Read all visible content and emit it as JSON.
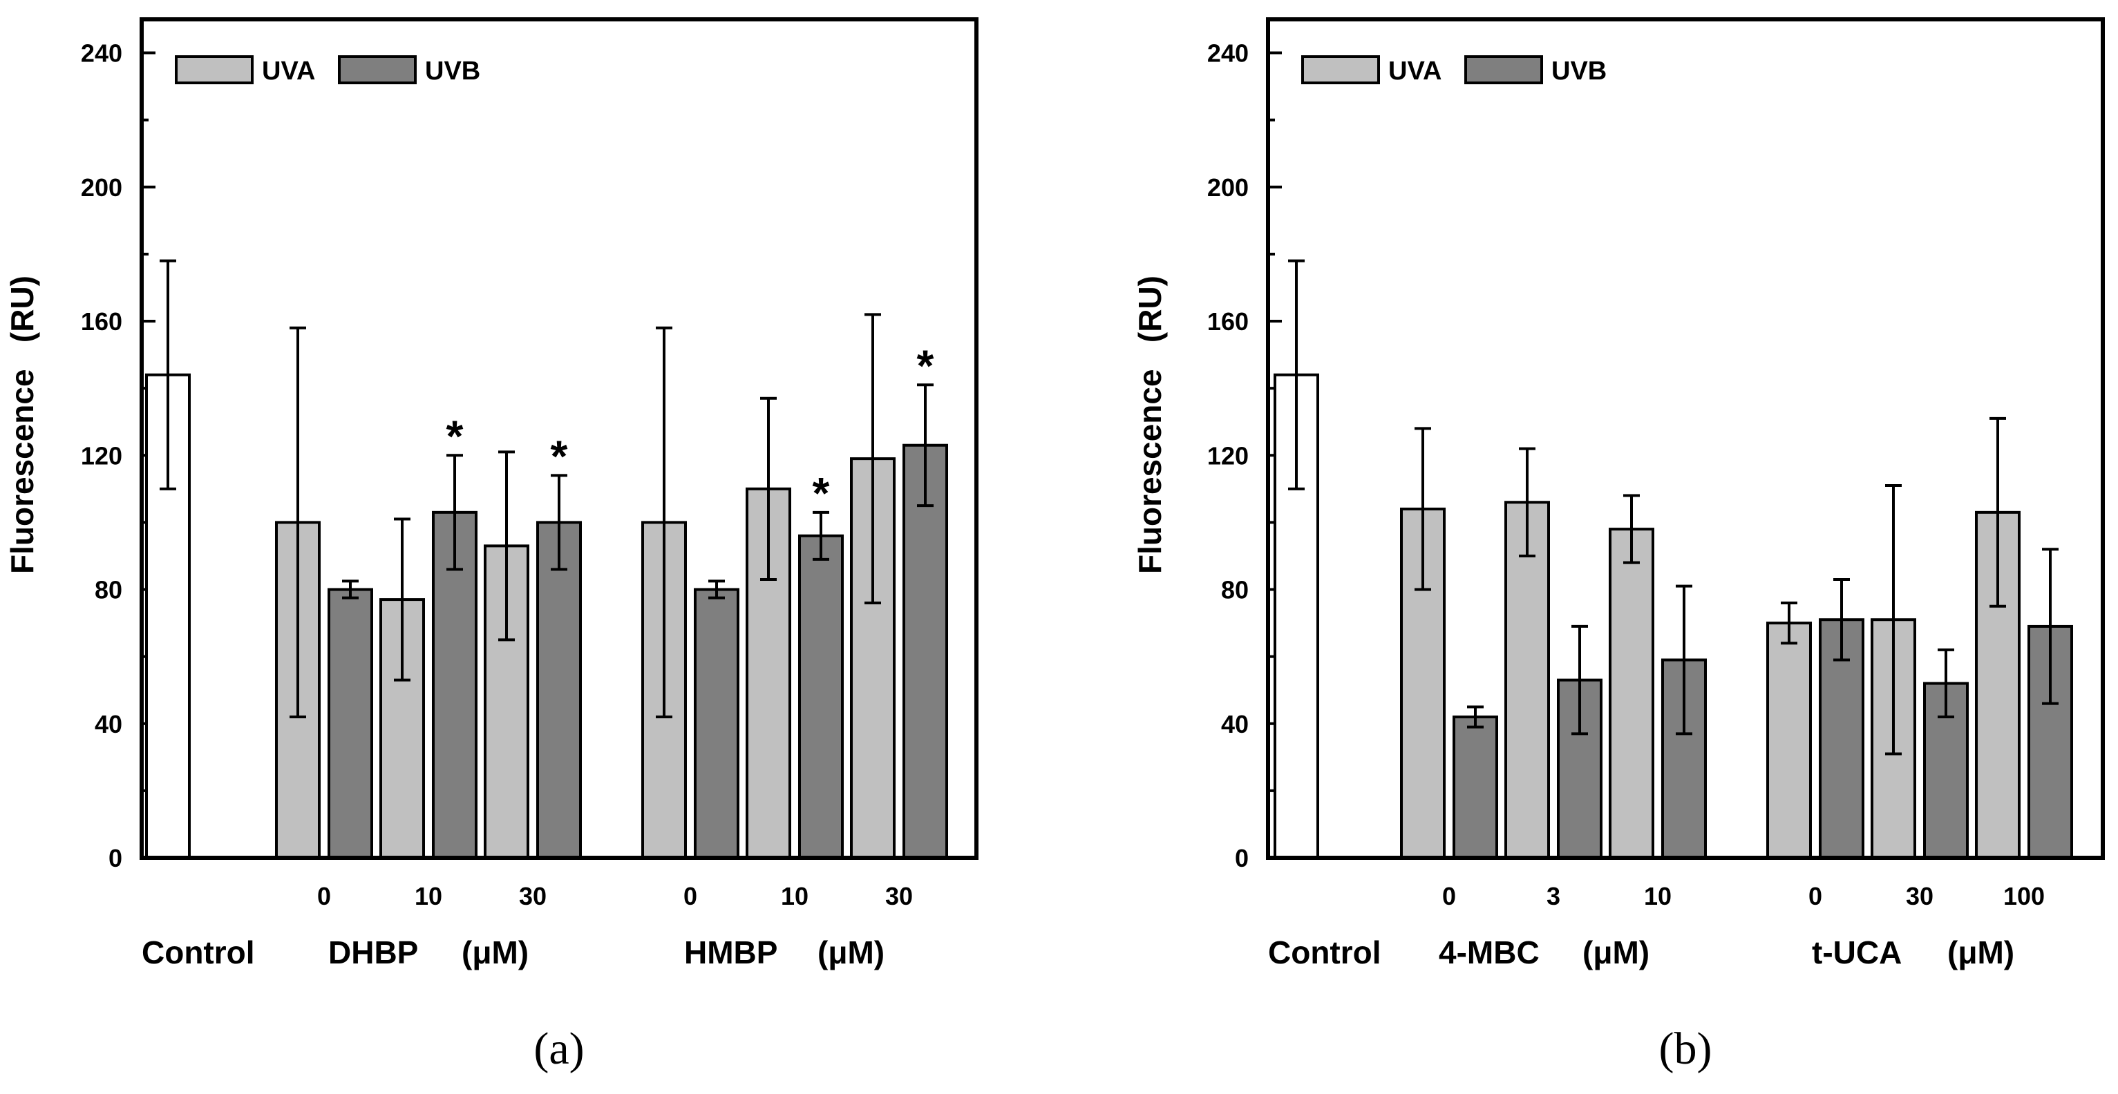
{
  "colors": {
    "control": "#ffffff",
    "uva": "#c0c0c0",
    "uvb": "#7f7f7f",
    "ink": "#000000"
  },
  "chart_data": [
    {
      "type": "bar",
      "panel_label": "(a)",
      "ylabel": "Fluorescence   (RU)",
      "ylim": [
        0,
        250
      ],
      "yticks": [
        0,
        40,
        80,
        120,
        160,
        200,
        240
      ],
      "legend": {
        "position": "top-left",
        "entries": [
          "UVA",
          "UVB"
        ]
      },
      "control": {
        "label": "Control",
        "value": 144,
        "err": 34
      },
      "groups": [
        {
          "name": "DHBP",
          "unit": "(μM)",
          "concentrations": [
            "0",
            "10",
            "30"
          ],
          "series": [
            {
              "name": "UVA",
              "values": [
                100,
                77,
                93
              ],
              "errors": [
                58,
                24,
                28
              ],
              "stars": [
                false,
                false,
                false
              ]
            },
            {
              "name": "UVB",
              "values": [
                80,
                103,
                100
              ],
              "errors": [
                2.5,
                17,
                14
              ],
              "stars": [
                false,
                true,
                true
              ]
            }
          ]
        },
        {
          "name": "HMBP",
          "unit": "(μM)",
          "concentrations": [
            "0",
            "10",
            "30"
          ],
          "series": [
            {
              "name": "UVA",
              "values": [
                100,
                110,
                119
              ],
              "errors": [
                58,
                27,
                43
              ],
              "stars": [
                false,
                false,
                false
              ]
            },
            {
              "name": "UVB",
              "values": [
                80,
                96,
                123
              ],
              "errors": [
                2.5,
                7,
                18
              ],
              "stars": [
                false,
                true,
                true
              ]
            }
          ]
        }
      ],
      "star_symbol": "*"
    },
    {
      "type": "bar",
      "panel_label": "(b)",
      "ylabel": "Fluorescence   (RU)",
      "ylim": [
        0,
        250
      ],
      "yticks": [
        0,
        40,
        80,
        120,
        160,
        200,
        240
      ],
      "legend": {
        "position": "top-left",
        "entries": [
          "UVA",
          "UVB"
        ]
      },
      "control": {
        "label": "Control",
        "value": 144,
        "err": 34
      },
      "groups": [
        {
          "name": "4-MBC",
          "unit": "(μM)",
          "concentrations": [
            "0",
            "3",
            "10"
          ],
          "series": [
            {
              "name": "UVA",
              "values": [
                104,
                106,
                98
              ],
              "errors": [
                24,
                16,
                10
              ],
              "stars": [
                false,
                false,
                false
              ]
            },
            {
              "name": "UVB",
              "values": [
                42,
                53,
                59
              ],
              "errors": [
                3,
                16,
                22
              ],
              "stars": [
                false,
                false,
                false
              ]
            }
          ]
        },
        {
          "name": "t-UCA",
          "unit": "(μM)",
          "concentrations": [
            "0",
            "30",
            "100"
          ],
          "series": [
            {
              "name": "UVA",
              "values": [
                70,
                71,
                103
              ],
              "errors": [
                6,
                40,
                28
              ],
              "stars": [
                false,
                false,
                false
              ]
            },
            {
              "name": "UVB",
              "values": [
                71,
                52,
                69
              ],
              "errors": [
                12,
                10,
                23
              ],
              "stars": [
                false,
                false,
                false
              ]
            }
          ]
        }
      ],
      "star_symbol": "*"
    }
  ]
}
